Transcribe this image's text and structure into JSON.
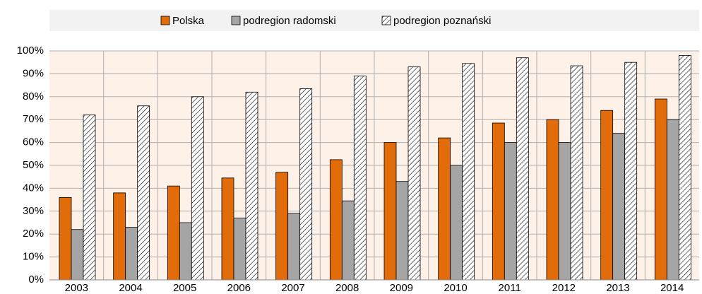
{
  "chart_data": {
    "type": "bar",
    "categories": [
      "2003",
      "2004",
      "2005",
      "2006",
      "2007",
      "2008",
      "2009",
      "2010",
      "2011",
      "2012",
      "2013",
      "2014"
    ],
    "series": [
      {
        "name": "Polska",
        "color": "#e26b0a",
        "values": [
          36,
          38,
          41,
          44.5,
          47,
          52.5,
          60,
          62,
          68.5,
          70,
          74,
          79
        ]
      },
      {
        "name": "podregion radomski",
        "color": "#a5a5a5",
        "values": [
          22,
          23,
          25,
          27,
          29,
          34.5,
          43,
          50,
          60,
          60,
          64,
          70
        ]
      },
      {
        "name": "podregion poznański",
        "color": "#ffffff",
        "hatch": true,
        "values": [
          72,
          76,
          80,
          82,
          83.5,
          89,
          93,
          94.5,
          97,
          93.5,
          95,
          98
        ]
      }
    ],
    "ylim": [
      0,
      100
    ],
    "yticks": [
      {
        "value": 0,
        "label": "0%"
      },
      {
        "value": 10,
        "label": "10%"
      },
      {
        "value": 20,
        "label": "20%"
      },
      {
        "value": 30,
        "label": "30%"
      },
      {
        "value": 40,
        "label": "40%"
      },
      {
        "value": 50,
        "label": "50%"
      },
      {
        "value": 60,
        "label": "60%"
      },
      {
        "value": 70,
        "label": "70%"
      },
      {
        "value": 80,
        "label": "80%"
      },
      {
        "value": 90,
        "label": "90%"
      },
      {
        "value": 100,
        "label": "100%"
      }
    ],
    "grid": true,
    "legend": "top"
  }
}
